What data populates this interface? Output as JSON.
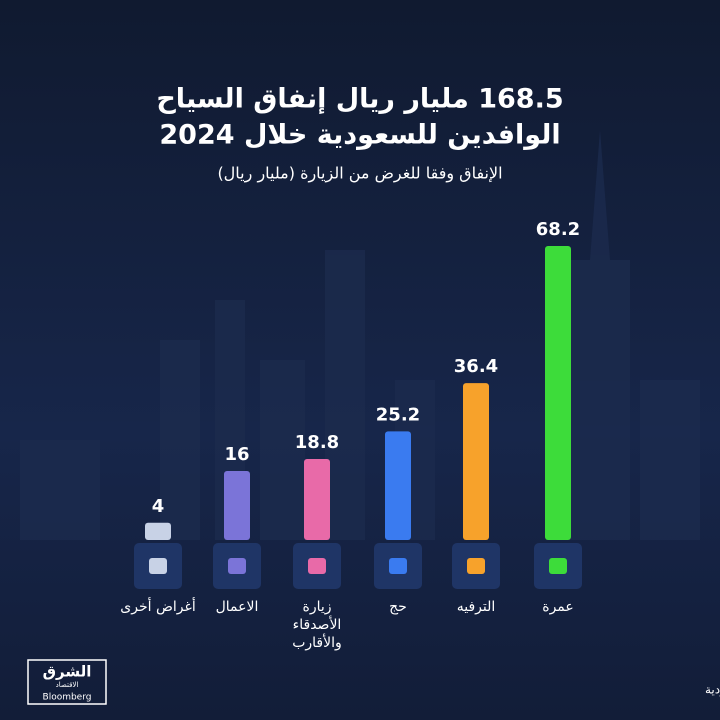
{
  "chart_data": {
    "type": "bar",
    "title_lines": [
      "168.5 مليار ريال إنفاق السياح",
      "الوافدين للسعودية خلال 2024"
    ],
    "subtitle": "الإنفاق وفقا للغرض من الزيارة (مليار ريال)",
    "categories": [
      "عمرة",
      "الترفيه",
      "حج",
      "زيارة الأصدقاء والأقارب",
      "الاعمال",
      "أغراض أخرى"
    ],
    "values": [
      68.2,
      36.4,
      25.2,
      18.8,
      16,
      4
    ],
    "colors": [
      "#3ddc3a",
      "#f7a22b",
      "#3a7bf0",
      "#e86aa8",
      "#7b74d8",
      "#c8d2e6"
    ],
    "source": "المصدر: بيانات وزارة السياحة السعودية",
    "logo": {
      "arabic": "الشرق",
      "sub": "الاقتصاد",
      "english": "Bloomberg"
    }
  }
}
